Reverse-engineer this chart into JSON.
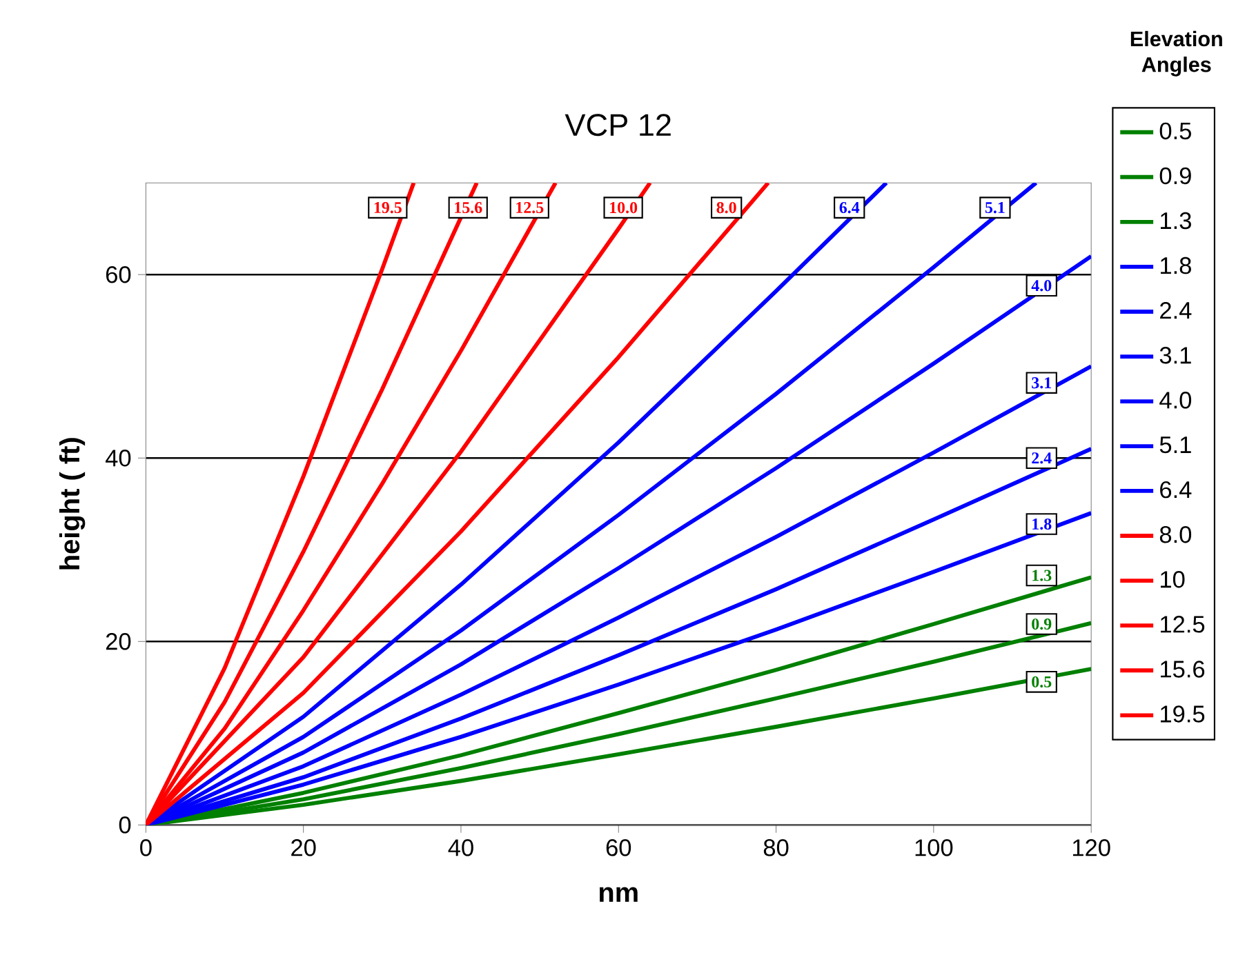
{
  "chart_data": {
    "type": "line",
    "title": "VCP 12",
    "xlabel": "nm",
    "ylabel": "height ( ft)",
    "legend_title": "Elevation Angles",
    "xlim": [
      0,
      120
    ],
    "ylim": [
      0,
      70
    ],
    "xticks": [
      0,
      20,
      40,
      60,
      80,
      100,
      120
    ],
    "yticks": [
      0,
      20,
      40,
      60
    ],
    "grid": "y",
    "legend": "right",
    "series": [
      {
        "name": "0.5",
        "color": "#008000",
        "x": [
          0,
          20,
          40,
          60,
          80,
          100,
          120
        ],
        "values": [
          0,
          2.2,
          4.8,
          7.7,
          10.7,
          13.8,
          17
        ]
      },
      {
        "name": "0.9",
        "color": "#008000",
        "x": [
          0,
          20,
          40,
          60,
          80,
          100,
          120
        ],
        "values": [
          0,
          2.8,
          6.2,
          9.9,
          13.8,
          17.8,
          22
        ]
      },
      {
        "name": "1.3",
        "color": "#008000",
        "x": [
          0,
          20,
          40,
          60,
          80,
          100,
          120
        ],
        "values": [
          0,
          3.5,
          7.6,
          12.2,
          16.9,
          21.9,
          27
        ]
      },
      {
        "name": "1.8",
        "color": "#0000ff",
        "x": [
          0,
          20,
          40,
          60,
          80,
          100,
          120
        ],
        "values": [
          0,
          4.4,
          9.6,
          15.3,
          21.3,
          27.6,
          34
        ]
      },
      {
        "name": "2.4",
        "color": "#0000ff",
        "x": [
          0,
          20,
          40,
          60,
          80,
          100,
          120
        ],
        "values": [
          0,
          5.2,
          11.6,
          18.5,
          25.7,
          33.3,
          41
        ]
      },
      {
        "name": "3.1",
        "color": "#0000ff",
        "x": [
          0,
          20,
          40,
          60,
          80,
          100,
          120
        ],
        "values": [
          0,
          6.4,
          14.2,
          22.6,
          31.4,
          40.6,
          50
        ]
      },
      {
        "name": "4.0",
        "color": "#0000ff",
        "x": [
          0,
          20,
          40,
          60,
          80,
          100,
          120
        ],
        "values": [
          0,
          7.9,
          17.5,
          28,
          38.9,
          50.3,
          62
        ]
      },
      {
        "name": "5.1",
        "color": "#0000ff",
        "x": [
          0,
          20,
          40,
          60,
          80,
          100,
          113
        ],
        "values": [
          0,
          9.6,
          21.2,
          33.8,
          47,
          60.8,
          70
        ]
      },
      {
        "name": "6.4",
        "color": "#0000ff",
        "x": [
          0,
          20,
          40,
          60,
          80,
          94
        ],
        "values": [
          0,
          11.8,
          26.2,
          41.7,
          58.2,
          70
        ]
      },
      {
        "name": "8.0",
        "color": "#ff0000",
        "x": [
          0,
          20,
          40,
          60,
          79
        ],
        "values": [
          0,
          14.4,
          32,
          51,
          70
        ]
      },
      {
        "name": "10",
        "color": "#ff0000",
        "x": [
          0,
          20,
          40,
          60,
          64
        ],
        "values": [
          0,
          18.3,
          40.7,
          65,
          70
        ]
      },
      {
        "name": "12.5",
        "color": "#ff0000",
        "x": [
          0,
          10,
          20,
          30,
          40,
          52
        ],
        "values": [
          0,
          10.5,
          23.4,
          37.2,
          51.7,
          70
        ]
      },
      {
        "name": "15.6",
        "color": "#ff0000",
        "x": [
          0,
          10,
          20,
          30,
          42
        ],
        "values": [
          0,
          13.4,
          29.8,
          47.5,
          70
        ]
      },
      {
        "name": "19.5",
        "color": "#ff0000",
        "x": [
          0,
          10,
          20,
          30,
          34
        ],
        "values": [
          0,
          17.1,
          38,
          60.6,
          70
        ]
      }
    ],
    "annotations": [
      {
        "text": "19.5",
        "x": 30.7,
        "y": 67.3
      },
      {
        "text": "15.6",
        "x": 40.9,
        "y": 67.3
      },
      {
        "text": "12.5",
        "x": 48.7,
        "y": 67.3
      },
      {
        "text": "10.0",
        "x": 60.6,
        "y": 67.3
      },
      {
        "text": "8.0",
        "x": 73.7,
        "y": 67.3
      },
      {
        "text": "6.4",
        "x": 89.3,
        "y": 67.3
      },
      {
        "text": "5.1",
        "x": 107.8,
        "y": 67.3
      },
      {
        "text": "4.0",
        "x": 113.7,
        "y": 58.8
      },
      {
        "text": "3.1",
        "x": 113.7,
        "y": 48.2
      },
      {
        "text": "2.4",
        "x": 113.7,
        "y": 40
      },
      {
        "text": "1.8",
        "x": 113.7,
        "y": 32.8
      },
      {
        "text": "1.3",
        "x": 113.7,
        "y": 27.2
      },
      {
        "text": "0.9",
        "x": 113.7,
        "y": 21.9
      },
      {
        "text": "0.5",
        "x": 113.7,
        "y": 15.6
      }
    ]
  }
}
